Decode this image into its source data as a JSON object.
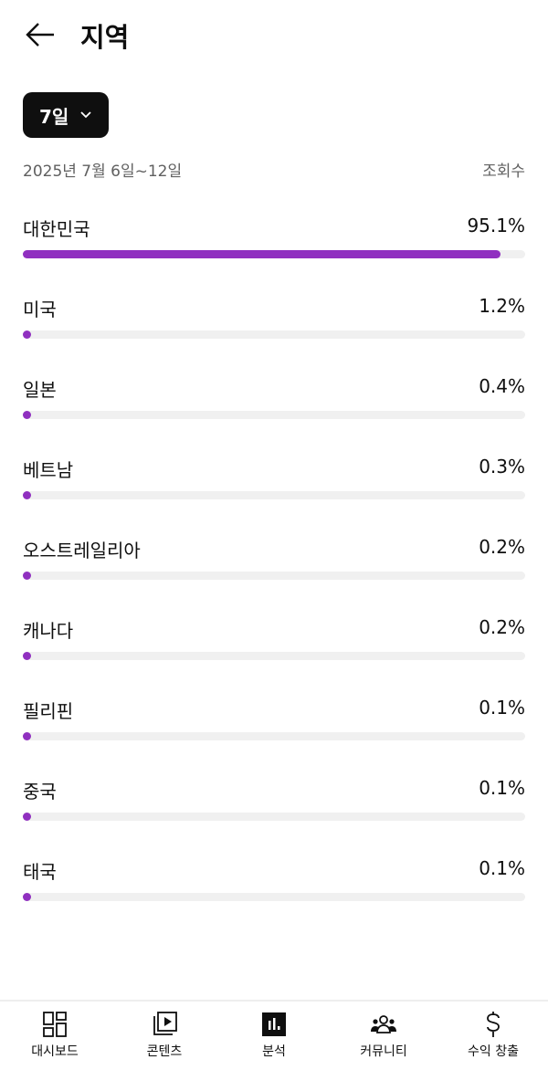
{
  "header": {
    "title": "지역",
    "back_icon": "arrow-left-icon"
  },
  "period": {
    "label": "7일"
  },
  "meta": {
    "date_range": "2025년 7월 6일~12일",
    "metric": "조회수"
  },
  "accent": "#9030c0",
  "regions": [
    {
      "name": "대한민국",
      "value": "95.1%",
      "pct": 95.1
    },
    {
      "name": "미국",
      "value": "1.2%",
      "pct": 1.2
    },
    {
      "name": "일본",
      "value": "0.4%",
      "pct": 0.4
    },
    {
      "name": "베트남",
      "value": "0.3%",
      "pct": 0.3
    },
    {
      "name": "오스트레일리아",
      "value": "0.2%",
      "pct": 0.2
    },
    {
      "name": "캐나다",
      "value": "0.2%",
      "pct": 0.2
    },
    {
      "name": "필리핀",
      "value": "0.1%",
      "pct": 0.1
    },
    {
      "name": "중국",
      "value": "0.1%",
      "pct": 0.1
    },
    {
      "name": "태국",
      "value": "0.1%",
      "pct": 0.1
    }
  ],
  "nav": [
    {
      "label": "대시보드",
      "icon": "dashboard-icon"
    },
    {
      "label": "콘텐츠",
      "icon": "content-icon"
    },
    {
      "label": "분석",
      "icon": "analytics-icon",
      "active": true
    },
    {
      "label": "커뮤니티",
      "icon": "community-icon"
    },
    {
      "label": "수익 창출",
      "icon": "dollar-icon"
    }
  ]
}
